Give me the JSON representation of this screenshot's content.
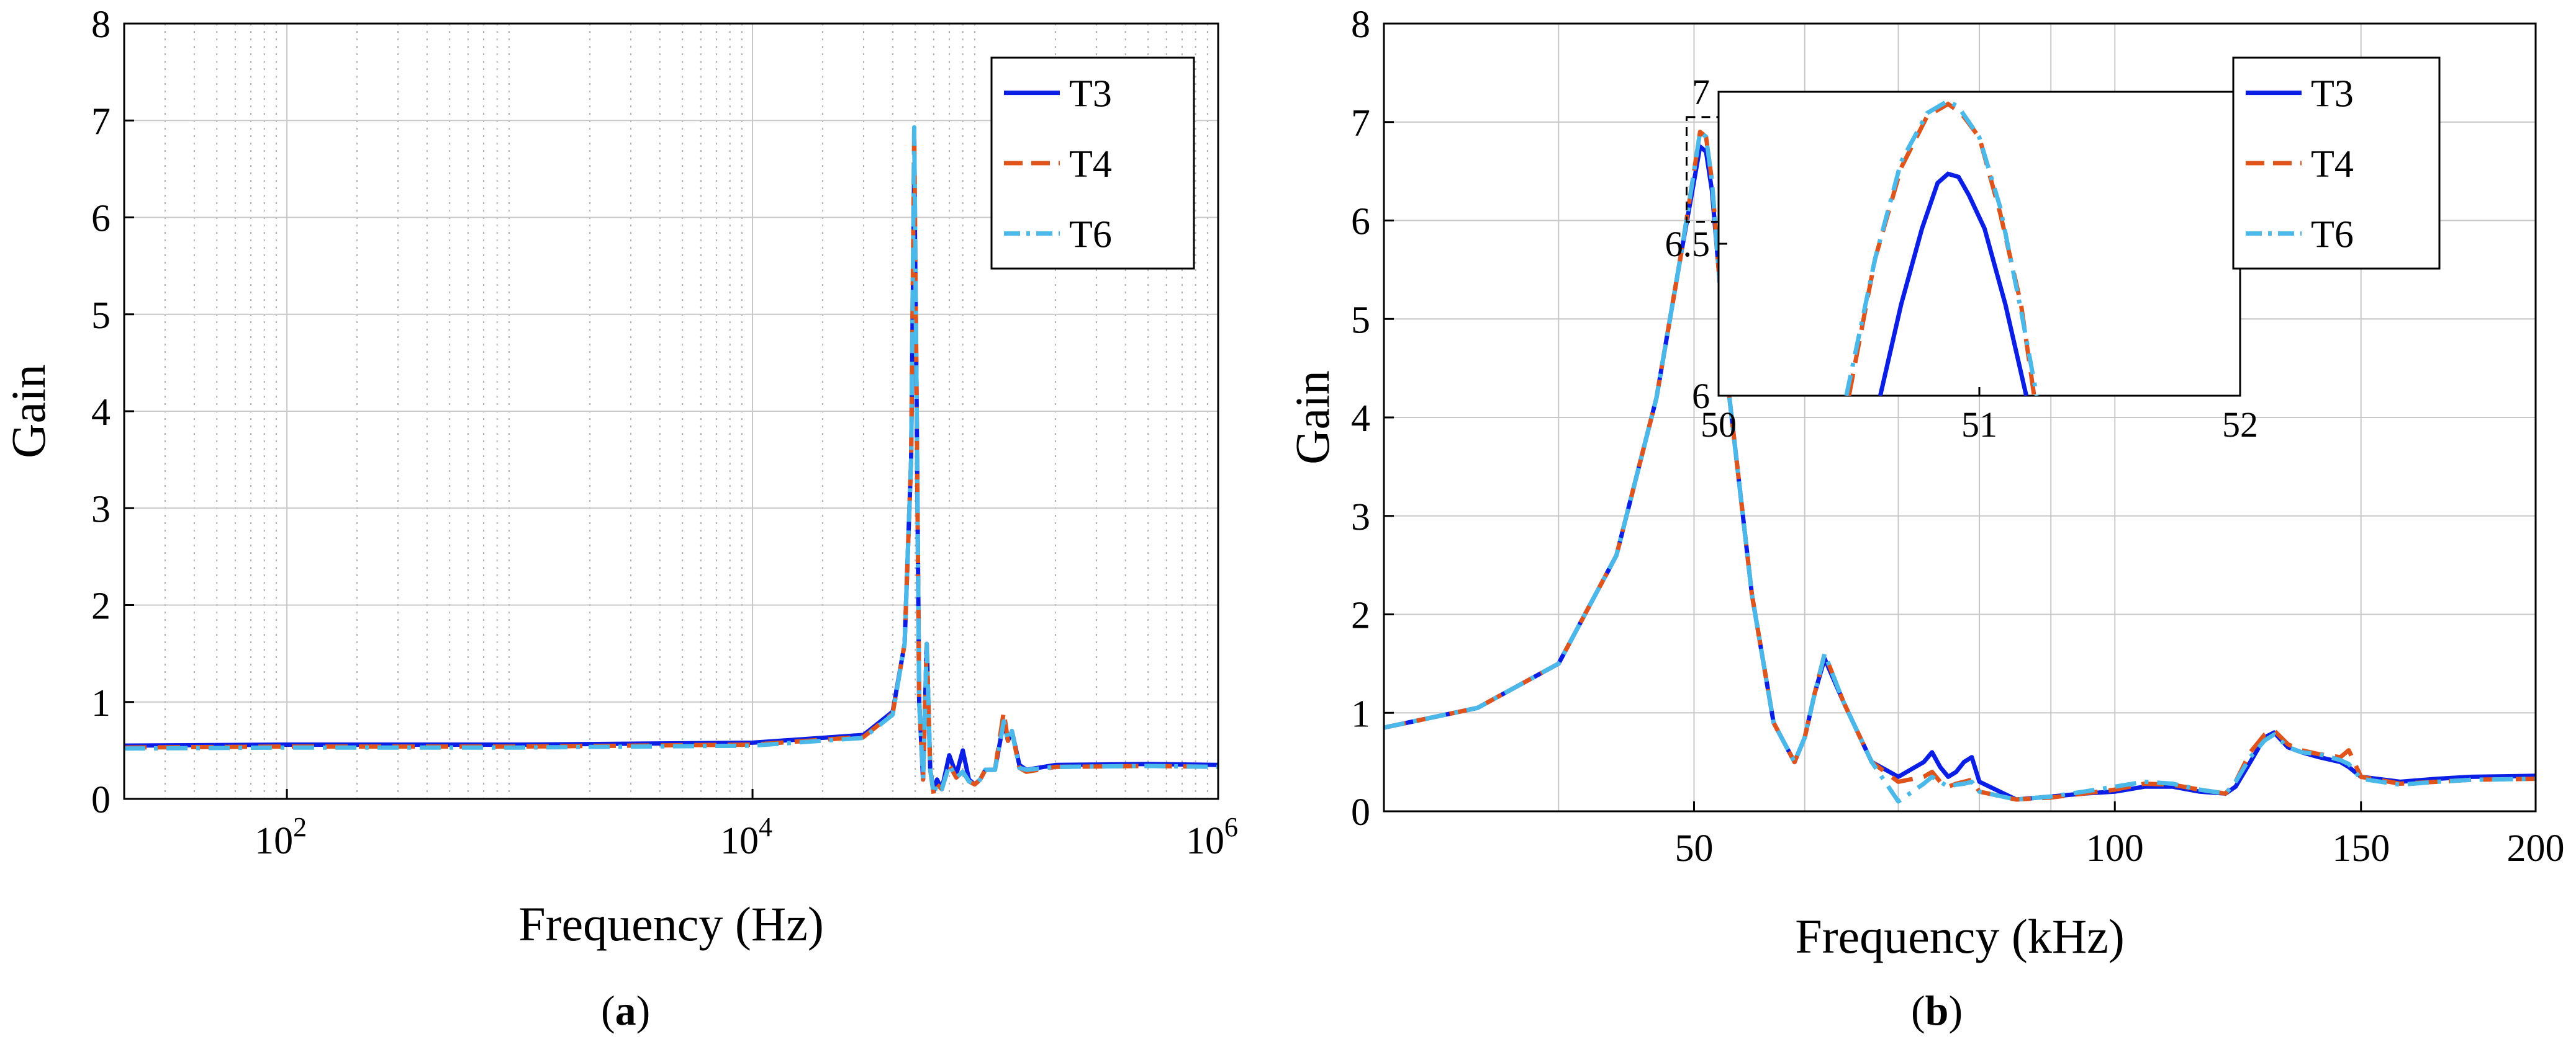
{
  "colors": {
    "T3": "#0a1ee6",
    "T4": "#e0541c",
    "T6": "#4ab8e8",
    "grid": "#c8c8c8",
    "axis": "#000000"
  },
  "chart_data": [
    {
      "type": "line",
      "panel_label": "a",
      "xscale": "log",
      "xlabel": "Frequency (Hz)",
      "ylabel": "Gain",
      "xlim": [
        20,
        1000000
      ],
      "ylim": [
        0,
        8
      ],
      "yticks": [
        0,
        1,
        2,
        3,
        4,
        5,
        6,
        7,
        8
      ],
      "xticks": [
        {
          "value": 100,
          "base": "10",
          "exp": "2"
        },
        {
          "value": 10000,
          "base": "10",
          "exp": "4"
        },
        {
          "value": 1000000,
          "base": "10",
          "exp": "6"
        }
      ],
      "grid": "on (major solid, minor dotted)",
      "legend": {
        "position": "top-right",
        "entries": [
          "T3",
          "T4",
          "T6"
        ]
      },
      "series": [
        {
          "name": "T3",
          "style": "solid",
          "x": [
            20,
            100,
            1000,
            10000,
            30000,
            40000,
            45000,
            48000,
            49500,
            50500,
            52000,
            54000,
            56000,
            58000,
            60000,
            62000,
            65000,
            70000,
            75000,
            80000,
            85000,
            90000,
            95000,
            100000,
            110000,
            120000,
            125000,
            130000,
            140000,
            150000,
            200000,
            500000,
            1000000
          ],
          "y": [
            0.55,
            0.56,
            0.56,
            0.58,
            0.66,
            0.9,
            1.6,
            3.5,
            6.55,
            4.5,
            1.0,
            0.2,
            1.6,
            0.3,
            0.08,
            0.2,
            0.1,
            0.45,
            0.25,
            0.5,
            0.2,
            0.15,
            0.2,
            0.3,
            0.3,
            0.8,
            0.6,
            0.7,
            0.35,
            0.3,
            0.35,
            0.36,
            0.35
          ]
        },
        {
          "name": "T4",
          "style": "dash",
          "x": [
            20,
            100,
            1000,
            10000,
            30000,
            40000,
            45000,
            48000,
            49500,
            50500,
            52000,
            54000,
            56000,
            58000,
            60000,
            62000,
            65000,
            70000,
            75000,
            80000,
            85000,
            90000,
            95000,
            100000,
            110000,
            120000,
            125000,
            130000,
            140000,
            150000,
            200000,
            500000,
            1000000
          ],
          "y": [
            0.53,
            0.54,
            0.54,
            0.56,
            0.64,
            0.88,
            1.6,
            3.5,
            6.92,
            4.5,
            1.0,
            0.2,
            1.6,
            0.3,
            0.05,
            0.15,
            0.1,
            0.35,
            0.22,
            0.28,
            0.18,
            0.15,
            0.2,
            0.3,
            0.3,
            0.9,
            0.6,
            0.7,
            0.32,
            0.28,
            0.33,
            0.34,
            0.33
          ]
        },
        {
          "name": "T6",
          "style": "dashdot",
          "x": [
            20,
            100,
            1000,
            10000,
            30000,
            40000,
            45000,
            48000,
            49500,
            50500,
            52000,
            54000,
            56000,
            58000,
            60000,
            62000,
            65000,
            70000,
            75000,
            80000,
            85000,
            90000,
            95000,
            100000,
            110000,
            120000,
            125000,
            130000,
            140000,
            150000,
            200000,
            500000,
            1000000
          ],
          "y": [
            0.52,
            0.53,
            0.53,
            0.55,
            0.63,
            0.87,
            1.6,
            3.5,
            6.93,
            4.5,
            1.0,
            0.2,
            1.6,
            0.3,
            0.05,
            0.15,
            0.1,
            0.35,
            0.22,
            0.28,
            0.18,
            0.15,
            0.2,
            0.3,
            0.3,
            0.8,
            0.6,
            0.7,
            0.32,
            0.3,
            0.33,
            0.34,
            0.33
          ]
        }
      ]
    },
    {
      "type": "line",
      "panel_label": "b",
      "xscale": "log",
      "xlabel": "Frequency (kHz)",
      "ylabel": "Gain",
      "xlim": [
        30,
        200
      ],
      "ylim": [
        0,
        8
      ],
      "yticks": [
        0,
        1,
        2,
        3,
        4,
        5,
        6,
        7,
        8
      ],
      "xticks": [
        50,
        100,
        150,
        200
      ],
      "grid": "on",
      "legend": {
        "position": "top-right",
        "entries": [
          "T3",
          "T4",
          "T6"
        ]
      },
      "series": [
        {
          "name": "T3",
          "style": "solid",
          "x": [
            30,
            35,
            40,
            44,
            47,
            49,
            50,
            50.5,
            51,
            51.5,
            52,
            53,
            55,
            57,
            59,
            60,
            61,
            62,
            64,
            67,
            70,
            73,
            74,
            75,
            76,
            77,
            78,
            79,
            80,
            85,
            90,
            95,
            100,
            105,
            110,
            115,
            120,
            122,
            125,
            128,
            130,
            133,
            136,
            140,
            145,
            147,
            150,
            160,
            170,
            180,
            200
          ],
          "y": [
            0.85,
            1.05,
            1.5,
            2.6,
            4.2,
            5.7,
            6.4,
            6.75,
            6.7,
            6.3,
            5.6,
            4.2,
            2.2,
            0.9,
            0.5,
            0.75,
            1.2,
            1.55,
            1.1,
            0.5,
            0.35,
            0.5,
            0.6,
            0.45,
            0.35,
            0.4,
            0.5,
            0.55,
            0.3,
            0.12,
            0.15,
            0.18,
            0.2,
            0.25,
            0.25,
            0.2,
            0.18,
            0.25,
            0.5,
            0.75,
            0.8,
            0.65,
            0.6,
            0.55,
            0.5,
            0.45,
            0.35,
            0.3,
            0.33,
            0.35,
            0.36
          ]
        },
        {
          "name": "T4",
          "style": "dash",
          "x": [
            30,
            35,
            40,
            44,
            47,
            49,
            50,
            50.5,
            51,
            51.5,
            52,
            53,
            55,
            57,
            59,
            60,
            61,
            62,
            64,
            67,
            70,
            73,
            74,
            75,
            76,
            77,
            78,
            79,
            80,
            85,
            90,
            95,
            100,
            105,
            110,
            115,
            120,
            122,
            125,
            128,
            130,
            133,
            136,
            140,
            145,
            147,
            150,
            160,
            170,
            180,
            200
          ],
          "y": [
            0.85,
            1.05,
            1.5,
            2.6,
            4.2,
            5.7,
            6.5,
            6.9,
            6.85,
            6.4,
            5.6,
            4.2,
            2.2,
            0.9,
            0.5,
            0.75,
            1.2,
            1.6,
            1.1,
            0.5,
            0.3,
            0.35,
            0.4,
            0.3,
            0.25,
            0.28,
            0.3,
            0.32,
            0.2,
            0.12,
            0.14,
            0.18,
            0.22,
            0.28,
            0.27,
            0.22,
            0.18,
            0.3,
            0.6,
            0.78,
            0.82,
            0.68,
            0.62,
            0.58,
            0.55,
            0.62,
            0.35,
            0.28,
            0.3,
            0.32,
            0.33
          ]
        },
        {
          "name": "T6",
          "style": "dashdot",
          "x": [
            30,
            35,
            40,
            44,
            47,
            49,
            50,
            50.5,
            51,
            51.5,
            52,
            53,
            55,
            57,
            59,
            60,
            61,
            62,
            64,
            67,
            70,
            73,
            74,
            75,
            76,
            77,
            78,
            79,
            80,
            85,
            90,
            95,
            100,
            105,
            110,
            115,
            120,
            122,
            125,
            128,
            130,
            133,
            136,
            140,
            145,
            147,
            150,
            160,
            170,
            180,
            200
          ],
          "y": [
            0.85,
            1.05,
            1.5,
            2.6,
            4.2,
            5.7,
            6.5,
            6.9,
            6.85,
            6.4,
            5.6,
            4.2,
            2.2,
            0.9,
            0.5,
            0.75,
            1.2,
            1.6,
            1.1,
            0.5,
            0.1,
            0.28,
            0.35,
            0.3,
            0.25,
            0.27,
            0.28,
            0.3,
            0.2,
            0.12,
            0.15,
            0.2,
            0.25,
            0.3,
            0.28,
            0.22,
            0.18,
            0.3,
            0.55,
            0.72,
            0.78,
            0.65,
            0.6,
            0.58,
            0.52,
            0.48,
            0.33,
            0.27,
            0.3,
            0.32,
            0.33
          ]
        }
      ],
      "inset": {
        "xlim": [
          50,
          52
        ],
        "ylim": [
          6,
          7
        ],
        "xticks": [
          50,
          51,
          52
        ],
        "yticks": [
          6,
          6.5,
          7
        ],
        "ytick_labels": [
          "6",
          "6.5",
          "7"
        ],
        "series": [
          {
            "name": "T3",
            "x": [
              50.62,
              50.7,
              50.78,
              50.84,
              50.88,
              50.92,
              50.96,
              51.02,
              51.1,
              51.18
            ],
            "y": [
              6.0,
              6.3,
              6.55,
              6.7,
              6.73,
              6.72,
              6.66,
              6.55,
              6.3,
              6.0
            ]
          },
          {
            "name": "T4",
            "x": [
              50.5,
              50.6,
              50.7,
              50.8,
              50.88,
              50.93,
              51.0,
              51.08,
              51.16,
              51.21
            ],
            "y": [
              6.0,
              6.45,
              6.75,
              6.92,
              6.96,
              6.93,
              6.85,
              6.6,
              6.3,
              6.0
            ]
          },
          {
            "name": "T6",
            "x": [
              50.49,
              50.6,
              50.7,
              50.8,
              50.88,
              50.92,
              51.0,
              51.08,
              51.16,
              51.22
            ],
            "y": [
              6.0,
              6.45,
              6.77,
              6.93,
              6.97,
              6.95,
              6.85,
              6.62,
              6.28,
              6.0
            ]
          }
        ]
      }
    }
  ]
}
